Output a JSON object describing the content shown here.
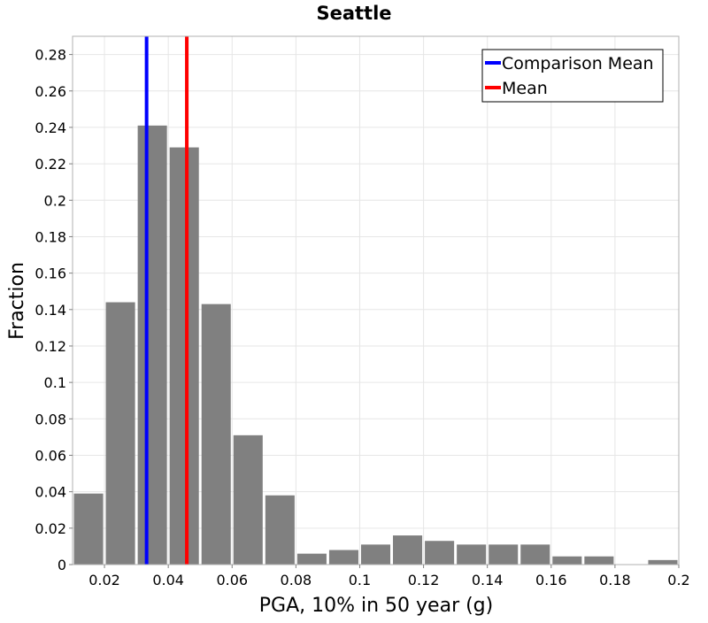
{
  "chart_data": {
    "type": "bar",
    "title": "Seattle",
    "xlabel": "PGA, 10% in 50 year (g)",
    "ylabel": "Fraction",
    "xlim": [
      0.01,
      0.2
    ],
    "ylim": [
      0,
      0.29
    ],
    "grid": true,
    "legend_position": "top-right",
    "bin_width": 0.01,
    "bin_centers": [
      0.015,
      0.025,
      0.035,
      0.045,
      0.055,
      0.065,
      0.075,
      0.085,
      0.095,
      0.105,
      0.115,
      0.125,
      0.135,
      0.145,
      0.155,
      0.165,
      0.175,
      0.185,
      0.195
    ],
    "values": [
      0.039,
      0.144,
      0.241,
      0.229,
      0.143,
      0.071,
      0.038,
      0.006,
      0.008,
      0.011,
      0.016,
      0.013,
      0.011,
      0.011,
      0.011,
      0.0045,
      0.0045,
      0.0,
      0.0025
    ],
    "bar_color": "#808080",
    "x_ticks": [
      {
        "value": 0.02,
        "label": "0.02"
      },
      {
        "value": 0.04,
        "label": "0.04"
      },
      {
        "value": 0.06,
        "label": "0.06"
      },
      {
        "value": 0.08,
        "label": "0.08"
      },
      {
        "value": 0.1,
        "label": "0.1"
      },
      {
        "value": 0.12,
        "label": "0.12"
      },
      {
        "value": 0.14,
        "label": "0.14"
      },
      {
        "value": 0.16,
        "label": "0.16"
      },
      {
        "value": 0.18,
        "label": "0.18"
      },
      {
        "value": 0.2,
        "label": "0.2"
      }
    ],
    "y_ticks": [
      {
        "value": 0,
        "label": "0"
      },
      {
        "value": 0.02,
        "label": "0.02"
      },
      {
        "value": 0.04,
        "label": "0.04"
      },
      {
        "value": 0.06,
        "label": "0.06"
      },
      {
        "value": 0.08,
        "label": "0.08"
      },
      {
        "value": 0.1,
        "label": "0.1"
      },
      {
        "value": 0.12,
        "label": "0.12"
      },
      {
        "value": 0.14,
        "label": "0.14"
      },
      {
        "value": 0.16,
        "label": "0.16"
      },
      {
        "value": 0.18,
        "label": "0.18"
      },
      {
        "value": 0.2,
        "label": "0.2"
      },
      {
        "value": 0.22,
        "label": "0.22"
      },
      {
        "value": 0.24,
        "label": "0.24"
      },
      {
        "value": 0.26,
        "label": "0.26"
      },
      {
        "value": 0.28,
        "label": "0.28"
      }
    ],
    "vlines": [
      {
        "name": "Comparison Mean",
        "x": 0.0332,
        "color": "#0000ff"
      },
      {
        "name": "Mean",
        "x": 0.0458,
        "color": "#ff0000"
      }
    ]
  }
}
